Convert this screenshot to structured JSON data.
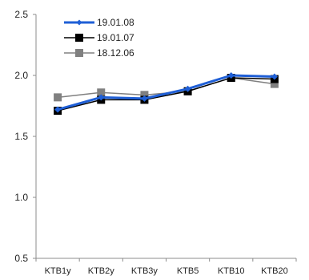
{
  "chart_data": {
    "type": "line",
    "categories": [
      "KTB1y",
      "KTB2y",
      "KTB3y",
      "KTB5",
      "KTB10",
      "KTB20"
    ],
    "ylim": [
      0.5,
      2.5
    ],
    "yticks": [
      0.5,
      1.0,
      1.5,
      2.0,
      2.5
    ],
    "ytick_labels": [
      "0.5",
      "1.0",
      "1.5",
      "2.0",
      "2.5"
    ],
    "grid": false,
    "legend_position": "top-left",
    "series": [
      {
        "name": "19.01.08",
        "values": [
          1.72,
          1.82,
          1.81,
          1.89,
          2.0,
          1.99
        ],
        "color": "#1f5fd6",
        "marker": "diamond"
      },
      {
        "name": "19.01.07",
        "values": [
          1.71,
          1.8,
          1.8,
          1.87,
          1.98,
          1.97
        ],
        "color": "#000000",
        "marker": "square"
      },
      {
        "name": "18.12.06",
        "values": [
          1.82,
          1.86,
          1.84,
          1.87,
          1.98,
          1.93
        ],
        "color": "#808080",
        "marker": "square"
      }
    ]
  }
}
